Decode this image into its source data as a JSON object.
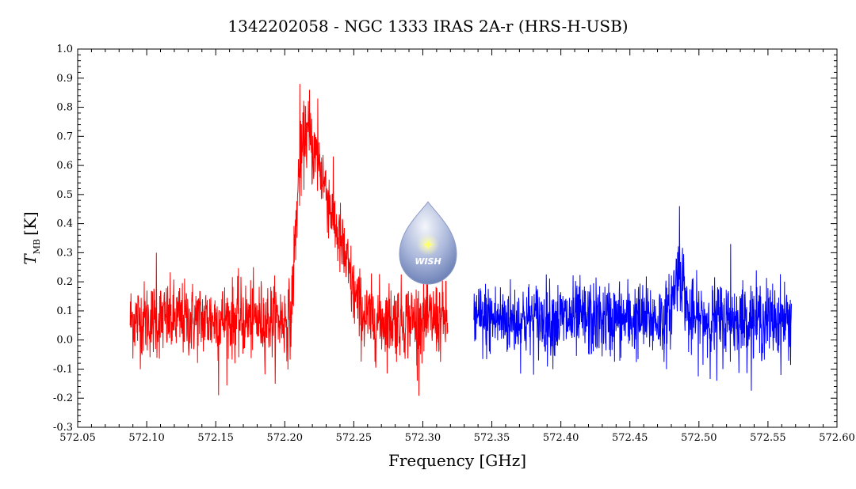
{
  "chart_data": {
    "type": "line",
    "title": "1342202058 - NGC 1333 IRAS 2A-r (HRS-H-USB)",
    "xlabel": "Frequency [GHz]",
    "ylabel_main": "T",
    "ylabel_sub": "MB",
    "ylabel_unit": "[K]",
    "xlim": [
      572.05,
      572.6
    ],
    "ylim": [
      -0.3,
      1.0
    ],
    "x_ticks": [
      "572.05",
      "572.10",
      "572.15",
      "572.20",
      "572.25",
      "572.30",
      "572.35",
      "572.40",
      "572.45",
      "572.50",
      "572.55",
      "572.60"
    ],
    "y_ticks": [
      "-0.3",
      "-0.2",
      "-0.1",
      "0.0",
      "0.1",
      "0.2",
      "0.3",
      "0.4",
      "0.5",
      "0.6",
      "0.7",
      "0.8",
      "0.9",
      "1.0"
    ],
    "series": [
      {
        "color": "#ff0000",
        "x_start": 572.088,
        "x_end": 572.318,
        "baseline": 0.07,
        "noise": 0.065,
        "profile": [
          {
            "x": 572.205,
            "y": 0.12
          },
          {
            "x": 572.21,
            "y": 0.55
          },
          {
            "x": 572.215,
            "y": 0.72
          },
          {
            "x": 572.22,
            "y": 0.66
          },
          {
            "x": 572.225,
            "y": 0.6
          },
          {
            "x": 572.23,
            "y": 0.52
          },
          {
            "x": 572.235,
            "y": 0.42
          },
          {
            "x": 572.24,
            "y": 0.34
          },
          {
            "x": 572.245,
            "y": 0.26
          },
          {
            "x": 572.25,
            "y": 0.16
          },
          {
            "x": 572.255,
            "y": 0.1
          },
          {
            "x": 572.26,
            "y": 0.07
          }
        ],
        "spikes": [
          {
            "x": 572.211,
            "y": 0.88
          },
          {
            "x": 572.218,
            "y": 0.86
          },
          {
            "x": 572.224,
            "y": 0.83
          },
          {
            "x": 572.152,
            "y": -0.19
          },
          {
            "x": 572.107,
            "y": 0.3
          },
          {
            "x": 572.296,
            "y": -0.14
          }
        ]
      },
      {
        "color": "#0000ff",
        "x_start": 572.337,
        "x_end": 572.567,
        "baseline": 0.07,
        "noise": 0.065,
        "profile": [
          {
            "x": 572.478,
            "y": 0.08
          },
          {
            "x": 572.484,
            "y": 0.22
          },
          {
            "x": 572.487,
            "y": 0.24
          },
          {
            "x": 572.492,
            "y": 0.1
          }
        ],
        "spikes": [
          {
            "x": 572.486,
            "y": 0.46
          },
          {
            "x": 572.523,
            "y": 0.33
          },
          {
            "x": 572.513,
            "y": -0.14
          }
        ]
      }
    ]
  },
  "logo": {
    "text": "WISH",
    "color_top": "#e8eef8",
    "color_bottom": "#7a8fc0",
    "star_color": "#ffff66"
  }
}
